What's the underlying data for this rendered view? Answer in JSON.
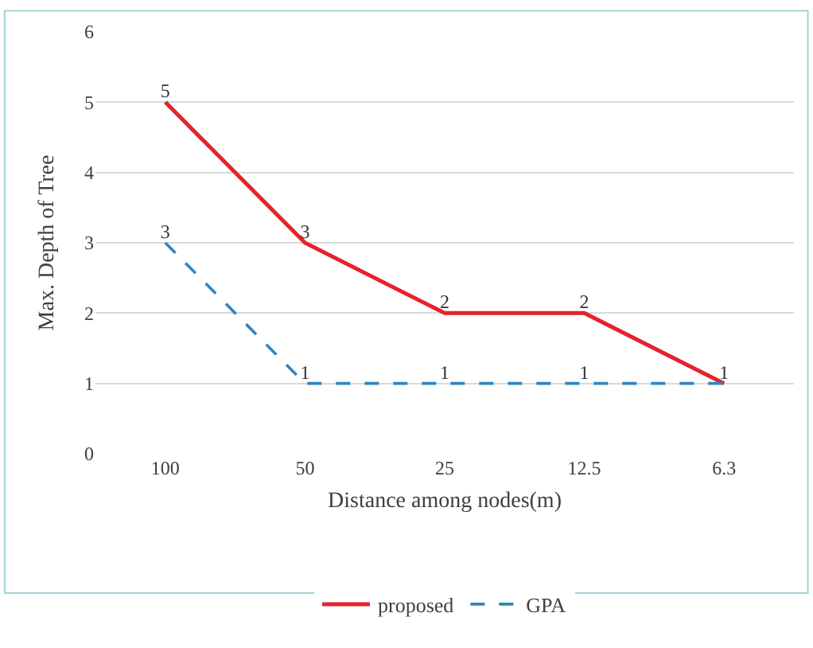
{
  "chart_data": {
    "type": "line",
    "xlabel": "Distance among nodes(m)",
    "ylabel": "Max. Depth of Tree",
    "categories": [
      "100",
      "50",
      "25",
      "12.5",
      "6.3"
    ],
    "series": [
      {
        "name": "proposed",
        "color": "#e3242b",
        "values": [
          5,
          3,
          2,
          2,
          1
        ],
        "line_style": "solid",
        "value_labels": [
          "5",
          "3",
          "2",
          "2",
          "1"
        ]
      },
      {
        "name": "GPA",
        "color": "#2e86c1",
        "values": [
          3,
          1,
          1,
          1,
          1
        ],
        "line_style": "dashed",
        "value_labels": [
          "3",
          "1",
          "1",
          "1",
          null
        ]
      }
    ],
    "ylim": [
      0,
      6
    ],
    "yticks": [
      0,
      1,
      2,
      3,
      4,
      5,
      6
    ],
    "grid": "y",
    "legend": "bottom",
    "marker": "none"
  }
}
